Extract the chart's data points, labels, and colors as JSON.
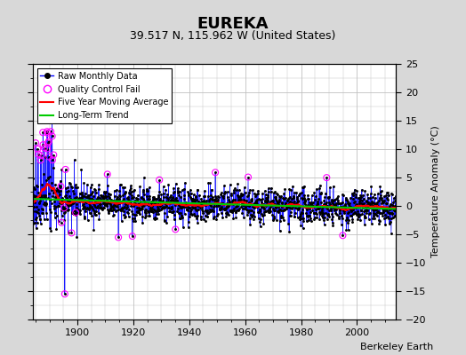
{
  "title": "EUREKA",
  "subtitle": "39.517 N, 115.962 W (United States)",
  "ylabel_right": "Temperature Anomaly (°C)",
  "watermark": "Berkeley Earth",
  "legend": {
    "raw": "Raw Monthly Data",
    "qc_fail": "Quality Control Fail",
    "moving_avg": "Five Year Moving Average",
    "trend": "Long-Term Trend"
  },
  "xlim": [
    1884,
    2014
  ],
  "ylim": [
    -20,
    25
  ],
  "yticks": [
    -20,
    -15,
    -10,
    -5,
    0,
    5,
    10,
    15,
    20,
    25
  ],
  "xticks": [
    1900,
    1920,
    1940,
    1960,
    1980,
    2000
  ],
  "start_year": 1884,
  "end_year": 2013,
  "raw_color": "#0000ff",
  "qc_color": "#ff00ff",
  "moving_avg_color": "#ff0000",
  "trend_color": "#00cc00",
  "bg_color": "#d8d8d8",
  "plot_bg_color": "#ffffff",
  "grid_color": "#c0c0c0",
  "title_fontsize": 13,
  "subtitle_fontsize": 9,
  "tick_fontsize": 8,
  "label_fontsize": 8
}
